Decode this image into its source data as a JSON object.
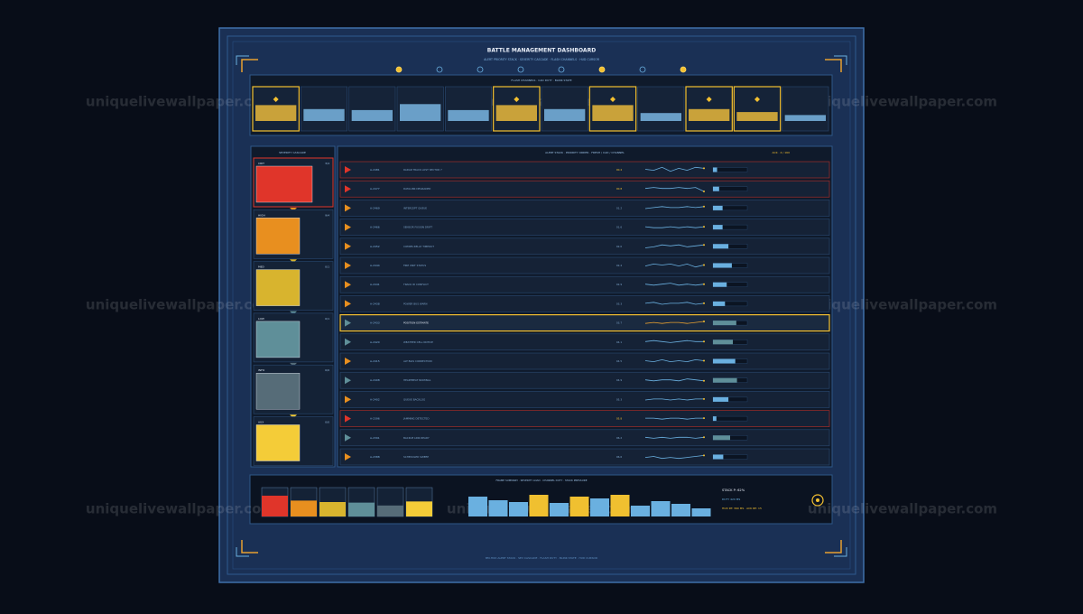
{
  "header": {
    "title": "BATTLE MANAGEMENT DASHBOARD",
    "subtitle": "ALERT PRIORITY STACK · SEVERITY CASCADE · FLASH CHANNELS · HUD CURSOR"
  },
  "flash_channels": {
    "title": "FLASH CHANNELS · CAD DUTY · BLINK STATE",
    "channels": [
      {
        "active": true,
        "level": 80
      },
      {
        "active": false,
        "level": 60
      },
      {
        "active": false,
        "level": 55
      },
      {
        "active": false,
        "level": 85
      },
      {
        "active": false,
        "level": 55
      },
      {
        "active": true,
        "level": 80
      },
      {
        "active": false,
        "level": 60
      },
      {
        "active": true,
        "level": 80
      },
      {
        "active": false,
        "level": 40
      },
      {
        "active": true,
        "level": 60
      },
      {
        "active": true,
        "level": 45
      },
      {
        "active": false,
        "level": 30
      }
    ]
  },
  "severity": {
    "title": "SEVERITY CASCADE",
    "levels": [
      {
        "label": "CRIT",
        "count": "3/4",
        "color": "#e0352a"
      },
      {
        "label": "HIGH",
        "count": "9/4",
        "color": "#e88f1f"
      },
      {
        "label": "MED",
        "count": "0/1",
        "color": "#d8b42e"
      },
      {
        "label": "LOW",
        "count": "0/1",
        "color": "#5f8f99"
      },
      {
        "label": "INFO",
        "count": "0/0",
        "color": "#566c78"
      },
      {
        "label": "AUX",
        "count": "0/0",
        "color": "#f4cc38"
      }
    ]
  },
  "alerts": {
    "title": "ALERT STACK · PRIORITY ORDER · FRESH / CAD / CHANNEL",
    "ack": "ACK · 4 / 160",
    "rows": [
      {
        "sev": 0,
        "id": "A-2481",
        "name": "RADAR TRACK LOST SECTOR 7",
        "value": "00.4",
        "load": 12,
        "spark": [
          5,
          4,
          7,
          3,
          6,
          4,
          7,
          6
        ]
      },
      {
        "sev": 0,
        "id": "A-2477",
        "name": "DATALINK DEGRADED",
        "value": "00.8",
        "load": 18,
        "spark": [
          5,
          6,
          5,
          5,
          6,
          5,
          6,
          2
        ]
      },
      {
        "sev": 1,
        "id": "A-2469",
        "name": "INTERCEPT QUEUE",
        "value": "01.2",
        "load": 28,
        "spark": [
          4,
          5,
          6,
          5,
          5,
          6,
          5,
          6
        ]
      },
      {
        "sev": 1,
        "id": "A-2466",
        "name": "SENSOR FUSION DRIFT",
        "value": "01.6",
        "load": 28,
        "spark": [
          5,
          4,
          4,
          5,
          4,
          5,
          4,
          5
        ]
      },
      {
        "sev": 1,
        "id": "A-2452",
        "name": "COMMS RELAY TIMEOUT",
        "value": "02.0",
        "load": 45,
        "spark": [
          3,
          4,
          6,
          5,
          6,
          4,
          5,
          6
        ]
      },
      {
        "sev": 1,
        "id": "A-2444",
        "name": "FIRE UNIT STATUS",
        "value": "02.4",
        "load": 55,
        "spark": [
          4,
          6,
          5,
          6,
          4,
          6,
          3,
          5
        ]
      },
      {
        "sev": 1,
        "id": "A-2441",
        "name": "TRACK ID CONFLICT",
        "value": "02.9",
        "load": 40,
        "spark": [
          5,
          4,
          5,
          6,
          4,
          5,
          4,
          5
        ]
      },
      {
        "sev": 1,
        "id": "A-2438",
        "name": "POWER BUS WARN",
        "value": "03.3",
        "load": 35,
        "spark": [
          5,
          6,
          4,
          5,
          5,
          6,
          4,
          5
        ]
      },
      {
        "sev": 3,
        "id": "A-2433",
        "name": "POSITION ESTIMATE",
        "value": "03.7",
        "load": 68,
        "spark": [
          4,
          5,
          4,
          5,
          5,
          4,
          5,
          6
        ]
      },
      {
        "sev": 3,
        "id": "A-2420",
        "name": "WEATHER CELL NOTICE",
        "value": "04.1",
        "load": 58,
        "spark": [
          5,
          6,
          5,
          4,
          5,
          6,
          5,
          5
        ]
      },
      {
        "sev": 1,
        "id": "A-2415",
        "name": "ALT BIAS CORRECTION",
        "value": "04.5",
        "load": 65,
        "spark": [
          5,
          4,
          6,
          4,
          5,
          4,
          6,
          5
        ]
      },
      {
        "sev": 3,
        "id": "A-2408",
        "name": "HEARTBEAT NOMINAL",
        "value": "04.9",
        "load": 70,
        "spark": [
          5,
          4,
          5,
          5,
          4,
          6,
          5,
          4
        ]
      },
      {
        "sev": 1,
        "id": "A-2402",
        "name": "QUEUE BACKLOG",
        "value": "05.3",
        "load": 45,
        "spark": [
          4,
          5,
          5,
          4,
          5,
          4,
          5,
          5
        ]
      },
      {
        "sev": 0,
        "id": "A-2396",
        "name": "JAMMING DETECTED",
        "value": "05.8",
        "load": 10,
        "spark": [
          5,
          5,
          4,
          5,
          5,
          4,
          5,
          5
        ]
      },
      {
        "sev": 3,
        "id": "A-2391",
        "name": "BACKUP LINK READY",
        "value": "06.2",
        "load": 50,
        "spark": [
          5,
          4,
          5,
          4,
          5,
          5,
          4,
          5
        ]
      },
      {
        "sev": 1,
        "id": "A-2388",
        "name": "SCHEDULED SWEEP",
        "value": "06.6",
        "load": 30,
        "spark": [
          4,
          5,
          3,
          4,
          3,
          4,
          5,
          6
        ]
      }
    ],
    "highlight": 8
  },
  "summary": {
    "title": "FRAME SUMMARY · SEVERITY LOAD · CHANNEL DUTY · STACK PRESSURE",
    "severity_load": [
      72,
      55,
      50,
      48,
      38,
      52
    ],
    "channel_duty": [
      22,
      18,
      16,
      24,
      15,
      22,
      20,
      24,
      12,
      17,
      14,
      9
    ],
    "stats": [
      "STACK P: 62%",
      "DUTY 420 MS",
      "HUD RT: 360 MS · ACK RE: 15"
    ]
  },
  "footer": "BM-HUD ALERT STACK · SEV CASCADE · FLASH DUTY · BLINK STATE · HUD CURSOR",
  "watermark": "uniquelivewallpaper.com"
}
